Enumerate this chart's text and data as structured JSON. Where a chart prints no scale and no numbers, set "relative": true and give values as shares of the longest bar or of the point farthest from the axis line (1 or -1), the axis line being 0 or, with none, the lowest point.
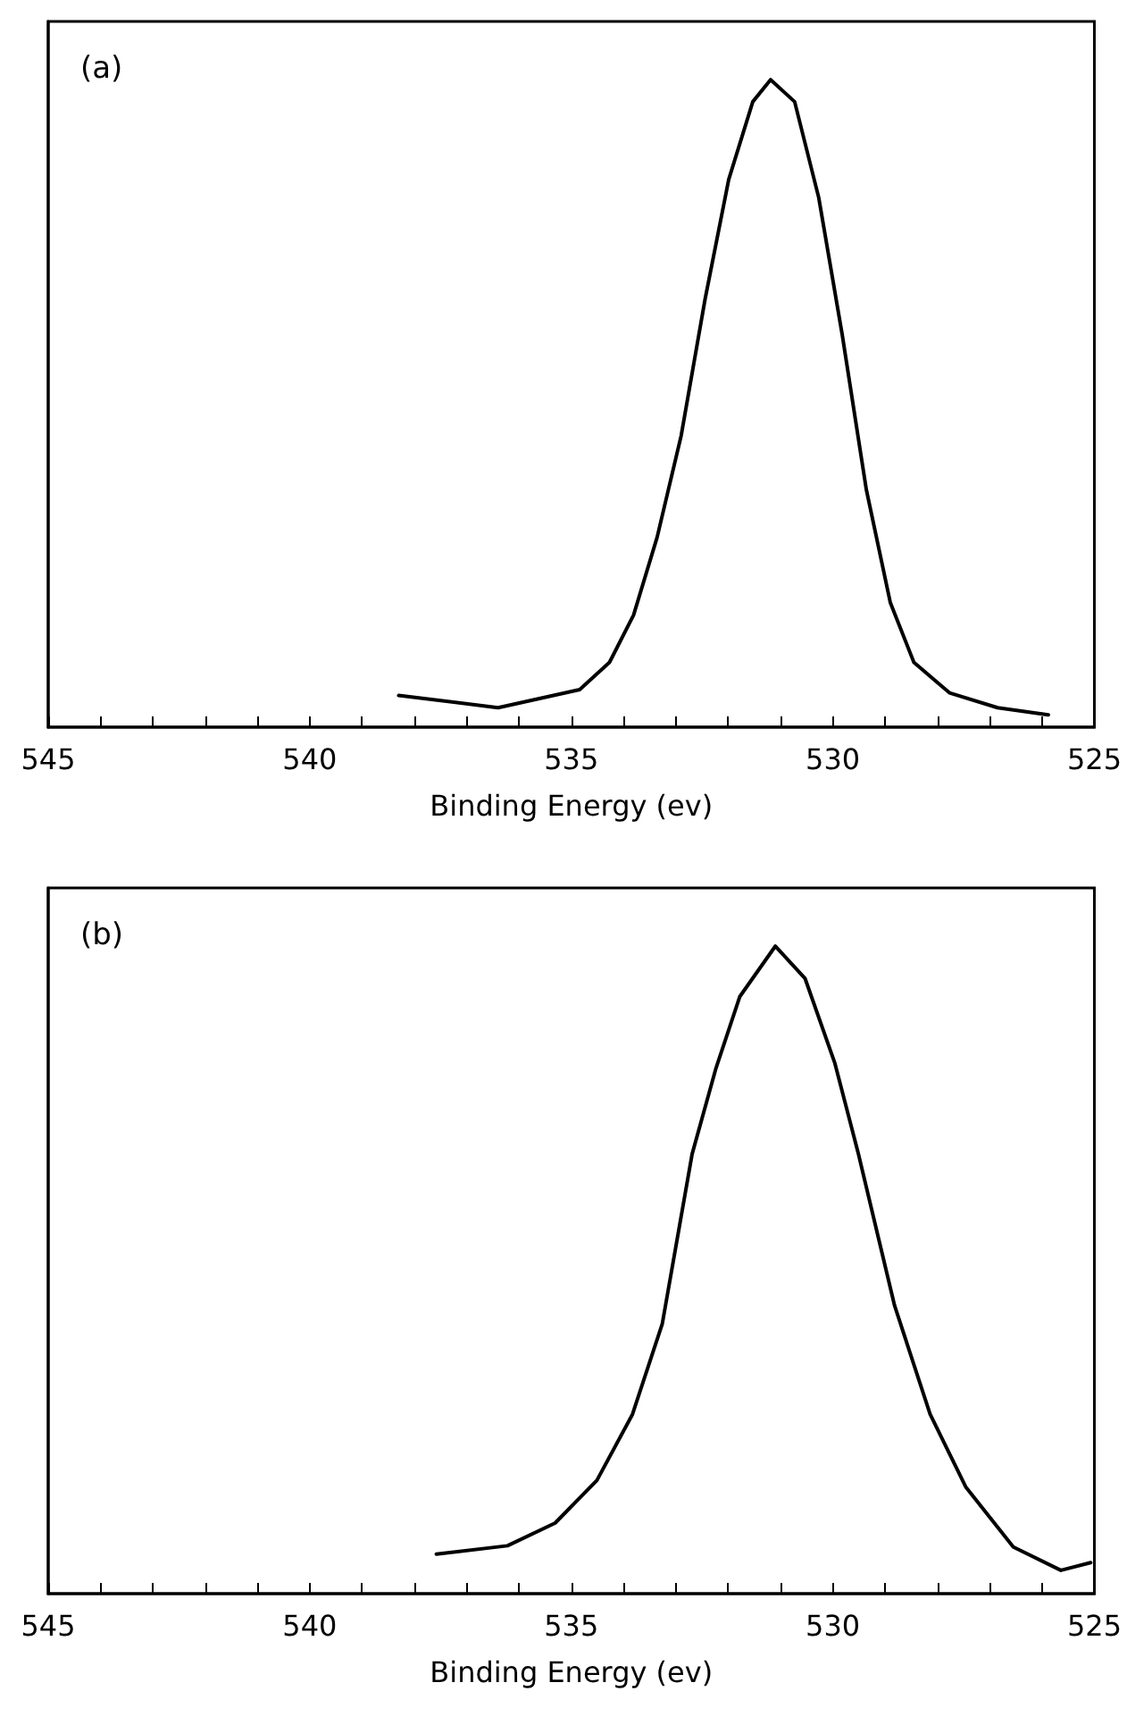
{
  "chart_data": [
    {
      "type": "line",
      "relative": true,
      "xlabel": "Binding Energy (ev)",
      "annotations": [
        "(a)"
      ],
      "xlim": [
        545,
        525
      ],
      "xticks": [
        545,
        {
          "value": 544,
          "label": null
        },
        {
          "value": 543,
          "label": null
        },
        {
          "value": 542,
          "label": null
        },
        {
          "value": 541,
          "label": null
        },
        540,
        {
          "value": 539,
          "label": null
        },
        {
          "value": 538,
          "label": null
        },
        {
          "value": 537,
          "label": null
        },
        {
          "value": 536,
          "label": null
        },
        535,
        {
          "value": 534,
          "label": null
        },
        {
          "value": 533,
          "label": null
        },
        {
          "value": 532,
          "label": null
        },
        {
          "value": 531,
          "label": null
        },
        530,
        {
          "value": 529,
          "label": null
        },
        {
          "value": 528,
          "label": null
        },
        {
          "value": 527,
          "label": null
        },
        {
          "value": 526,
          "label": null
        },
        525
      ],
      "series": [
        {
          "color": "#000000",
          "x": [
            538.3,
            536.4,
            534.84,
            534.27,
            533.81,
            533.36,
            532.9,
            532.44,
            531.99,
            531.53,
            531.19,
            530.73,
            530.27,
            529.82,
            529.36,
            528.9,
            528.45,
            527.77,
            526.85,
            525.88
          ],
          "values": [
            0.049,
            0.03,
            0.058,
            0.1,
            0.173,
            0.293,
            0.45,
            0.662,
            0.846,
            0.966,
            1,
            0.966,
            0.818,
            0.606,
            0.367,
            0.192,
            0.1,
            0.053,
            0.03,
            0.019
          ]
        }
      ]
    },
    {
      "type": "line",
      "relative": true,
      "xlabel": "Binding Energy (ev)",
      "annotations": [
        "(b)"
      ],
      "xlim": [
        545,
        525
      ],
      "xticks": [
        545,
        {
          "value": 544,
          "label": null
        },
        {
          "value": 543,
          "label": null
        },
        {
          "value": 542,
          "label": null
        },
        {
          "value": 541,
          "label": null
        },
        540,
        {
          "value": 539,
          "label": null
        },
        {
          "value": 538,
          "label": null
        },
        {
          "value": 537,
          "label": null
        },
        {
          "value": 536,
          "label": null
        },
        535,
        {
          "value": 534,
          "label": null
        },
        {
          "value": 533,
          "label": null
        },
        {
          "value": 532,
          "label": null
        },
        {
          "value": 531,
          "label": null
        },
        530,
        {
          "value": 529,
          "label": null
        },
        {
          "value": 528,
          "label": null
        },
        {
          "value": 527,
          "label": null
        },
        {
          "value": 526,
          "label": null
        },
        525
      ],
      "series": [
        {
          "color": "#000000",
          "x": [
            537.58,
            536.22,
            535.31,
            534.51,
            533.83,
            533.26,
            532.69,
            532.24,
            531.78,
            531.1,
            530.53,
            529.96,
            529.51,
            528.82,
            528.14,
            527.46,
            526.55,
            525.64,
            525.07
          ],
          "values": [
            0.061,
            0.074,
            0.109,
            0.175,
            0.277,
            0.417,
            0.679,
            0.81,
            0.922,
            1,
            0.95,
            0.819,
            0.679,
            0.445,
            0.277,
            0.165,
            0.072,
            0.036,
            0.048
          ]
        }
      ]
    }
  ]
}
